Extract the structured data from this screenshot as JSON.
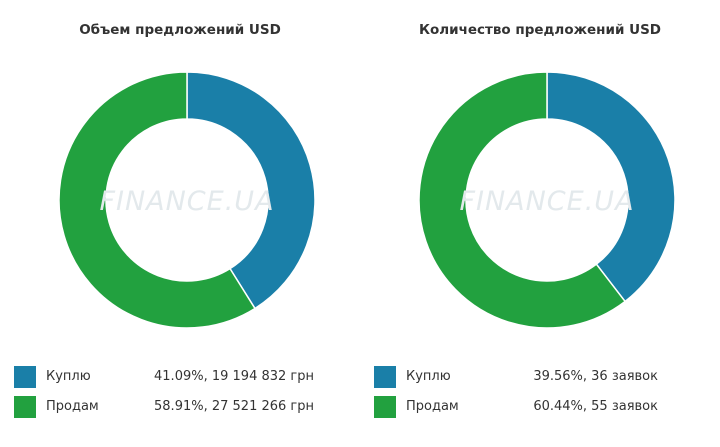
{
  "watermark": "FINANCE.UA",
  "colors": {
    "buy": "#1a7fa8",
    "sell": "#22a13f",
    "separator": "#ffffff"
  },
  "chart_data": [
    {
      "type": "pie",
      "title": "Объем предложений USD",
      "series": [
        {
          "name": "Куплю",
          "percent": 41.09,
          "value_text": "41.09%, 19 194 832 грн"
        },
        {
          "name": "Продам",
          "percent": 58.91,
          "value_text": "58.91%, 27 521 266 грн"
        }
      ]
    },
    {
      "type": "pie",
      "title": "Количество предложений USD",
      "series": [
        {
          "name": "Куплю",
          "percent": 39.56,
          "value_text": "39.56%, 36 заявок"
        },
        {
          "name": "Продам",
          "percent": 60.44,
          "value_text": "60.44%, 55 заявок"
        }
      ]
    }
  ]
}
